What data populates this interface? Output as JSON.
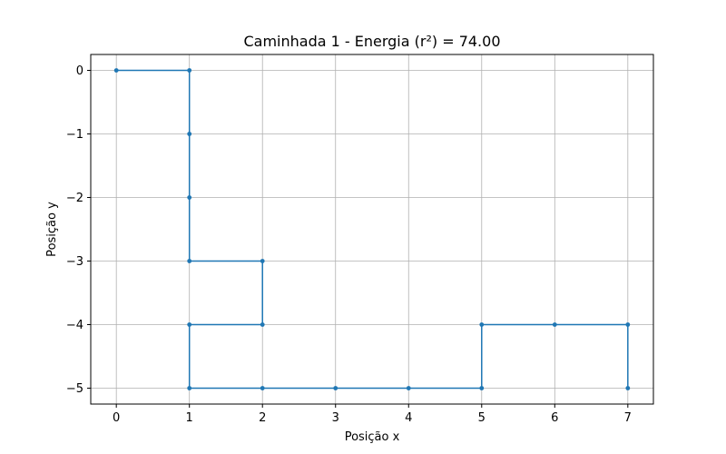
{
  "chart_data": {
    "type": "line",
    "title": "Caminhada 1 - Energia (r²) = 74.00",
    "xlabel": "Posição x",
    "ylabel": "Posição y",
    "xlim": [
      -0.35,
      7.35
    ],
    "ylim": [
      -5.25,
      0.25
    ],
    "xticks": [
      0,
      1,
      2,
      3,
      4,
      5,
      6,
      7
    ],
    "xtick_labels": [
      "0",
      "1",
      "2",
      "3",
      "4",
      "5",
      "6",
      "7"
    ],
    "yticks": [
      0,
      -1,
      -2,
      -3,
      -4,
      -5
    ],
    "ytick_labels": [
      "0",
      "−1",
      "−2",
      "−3",
      "−4",
      "−5"
    ],
    "grid": true,
    "series": [
      {
        "color": "#1f77b4",
        "x": [
          0,
          1,
          1,
          1,
          1,
          2,
          2,
          1,
          1,
          2,
          3,
          4,
          5,
          5,
          6,
          7,
          7
        ],
        "y": [
          0,
          0,
          -1,
          -2,
          -3,
          -3,
          -4,
          -4,
          -5,
          -5,
          -5,
          -5,
          -5,
          -4,
          -4,
          -4,
          -5
        ]
      }
    ]
  }
}
